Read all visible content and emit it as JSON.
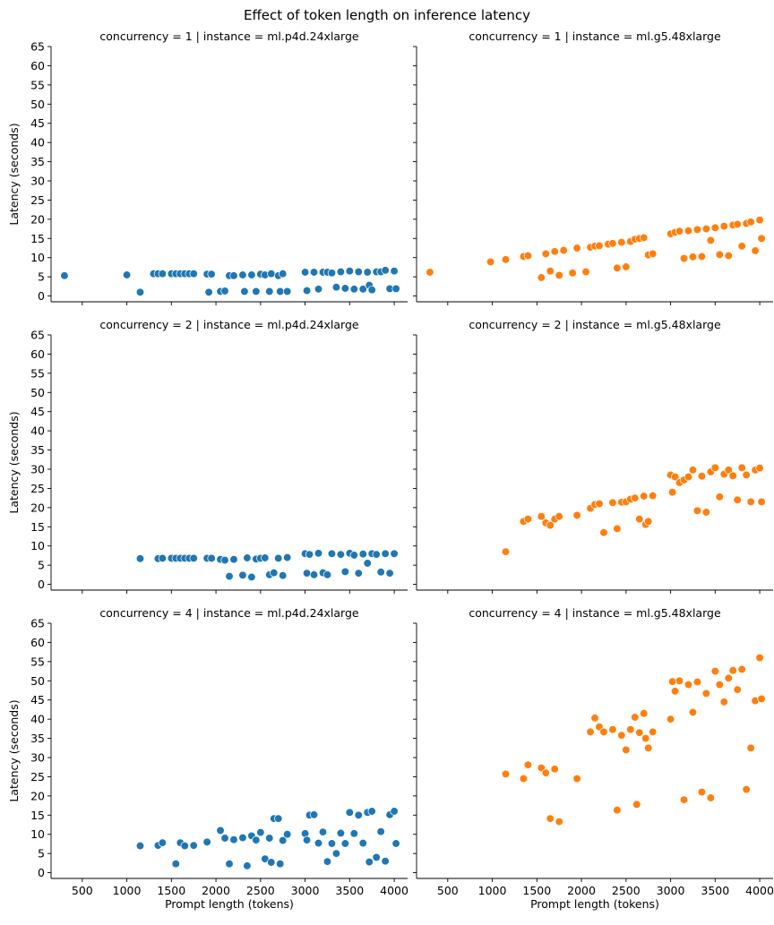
{
  "title": "Effect of token length on inference latency",
  "colors": {
    "p4d": "#1f77b4",
    "g5": "#ff7f0e"
  },
  "chart_data": {
    "type": "scatter",
    "title": "Effect of token length on inference latency",
    "xlabel": "Prompt length (tokens)",
    "ylabel": "Latency (seconds)",
    "xlim": [
      150,
      4150
    ],
    "ylim": [
      -1.5,
      65
    ],
    "x_ticks": [
      500,
      1000,
      1500,
      2000,
      2500,
      3000,
      3500,
      4000
    ],
    "y_ticks": [
      0,
      5,
      10,
      15,
      20,
      25,
      30,
      35,
      40,
      45,
      50,
      55,
      60,
      65
    ],
    "grid": false,
    "legend": "none",
    "panels": [
      {
        "title": "concurrency = 1 | instance = ml.p4d.24xlarge",
        "color": "#1f77b4",
        "points": [
          [
            300,
            5.3
          ],
          [
            1000,
            5.5
          ],
          [
            1150,
            1.0
          ],
          [
            1300,
            5.8
          ],
          [
            1350,
            5.8
          ],
          [
            1400,
            5.8
          ],
          [
            1500,
            5.8
          ],
          [
            1550,
            5.8
          ],
          [
            1600,
            5.8
          ],
          [
            1650,
            5.8
          ],
          [
            1700,
            5.8
          ],
          [
            1750,
            5.8
          ],
          [
            1900,
            5.7
          ],
          [
            1920,
            1.0
          ],
          [
            1950,
            5.7
          ],
          [
            2050,
            1.2
          ],
          [
            2100,
            1.3
          ],
          [
            2150,
            5.3
          ],
          [
            2200,
            5.3
          ],
          [
            2300,
            5.5
          ],
          [
            2320,
            1.2
          ],
          [
            2400,
            5.5
          ],
          [
            2450,
            1.2
          ],
          [
            2500,
            5.7
          ],
          [
            2550,
            5.5
          ],
          [
            2600,
            1.2
          ],
          [
            2620,
            5.8
          ],
          [
            2700,
            5.3
          ],
          [
            2720,
            1.2
          ],
          [
            2750,
            5.8
          ],
          [
            2800,
            1.2
          ],
          [
            3000,
            6.2
          ],
          [
            3020,
            1.4
          ],
          [
            3100,
            6.2
          ],
          [
            3150,
            1.8
          ],
          [
            3200,
            6.2
          ],
          [
            3250,
            6.2
          ],
          [
            3300,
            6.0
          ],
          [
            3350,
            2.3
          ],
          [
            3400,
            6.3
          ],
          [
            3450,
            2.0
          ],
          [
            3500,
            6.5
          ],
          [
            3550,
            1.8
          ],
          [
            3600,
            6.3
          ],
          [
            3650,
            1.8
          ],
          [
            3700,
            6.2
          ],
          [
            3720,
            2.8
          ],
          [
            3750,
            1.6
          ],
          [
            3800,
            6.3
          ],
          [
            3850,
            6.3
          ],
          [
            3900,
            6.7
          ],
          [
            3950,
            1.9
          ],
          [
            4000,
            6.5
          ],
          [
            4020,
            1.9
          ]
        ]
      },
      {
        "title": "concurrency = 1 | instance = ml.g5.48xlarge",
        "color": "#ff7f0e",
        "points": [
          [
            300,
            6.2
          ],
          [
            980,
            8.9
          ],
          [
            1150,
            9.5
          ],
          [
            1350,
            10.3
          ],
          [
            1400,
            10.5
          ],
          [
            1550,
            4.8
          ],
          [
            1600,
            11.0
          ],
          [
            1650,
            6.5
          ],
          [
            1700,
            11.6
          ],
          [
            1750,
            5.4
          ],
          [
            1800,
            11.9
          ],
          [
            1900,
            6.0
          ],
          [
            1950,
            12.5
          ],
          [
            2050,
            6.3
          ],
          [
            2100,
            12.7
          ],
          [
            2150,
            13.0
          ],
          [
            2200,
            13.1
          ],
          [
            2300,
            13.5
          ],
          [
            2350,
            13.7
          ],
          [
            2400,
            7.3
          ],
          [
            2450,
            14.0
          ],
          [
            2500,
            7.6
          ],
          [
            2550,
            14.2
          ],
          [
            2600,
            14.8
          ],
          [
            2650,
            15.0
          ],
          [
            2700,
            15.2
          ],
          [
            2750,
            10.7
          ],
          [
            2800,
            11.0
          ],
          [
            3000,
            16.2
          ],
          [
            3050,
            16.6
          ],
          [
            3100,
            16.9
          ],
          [
            3150,
            9.8
          ],
          [
            3200,
            17.0
          ],
          [
            3250,
            10.2
          ],
          [
            3300,
            17.3
          ],
          [
            3350,
            10.3
          ],
          [
            3400,
            17.5
          ],
          [
            3450,
            14.5
          ],
          [
            3500,
            17.8
          ],
          [
            3550,
            10.8
          ],
          [
            3600,
            18.2
          ],
          [
            3650,
            10.5
          ],
          [
            3700,
            18.5
          ],
          [
            3750,
            18.7
          ],
          [
            3800,
            13.0
          ],
          [
            3850,
            18.9
          ],
          [
            3900,
            19.3
          ],
          [
            3950,
            11.8
          ],
          [
            4000,
            19.8
          ],
          [
            4020,
            15.0
          ]
        ]
      },
      {
        "title": "concurrency = 2 | instance = ml.p4d.24xlarge",
        "color": "#1f77b4",
        "points": [
          [
            1150,
            6.7
          ],
          [
            1350,
            6.7
          ],
          [
            1400,
            6.8
          ],
          [
            1500,
            6.8
          ],
          [
            1550,
            6.8
          ],
          [
            1600,
            6.8
          ],
          [
            1650,
            6.8
          ],
          [
            1700,
            6.8
          ],
          [
            1750,
            6.8
          ],
          [
            1900,
            6.8
          ],
          [
            1950,
            6.8
          ],
          [
            2050,
            6.5
          ],
          [
            2100,
            6.3
          ],
          [
            2150,
            2.1
          ],
          [
            2200,
            6.5
          ],
          [
            2300,
            2.4
          ],
          [
            2350,
            6.9
          ],
          [
            2400,
            1.9
          ],
          [
            2450,
            6.6
          ],
          [
            2500,
            6.8
          ],
          [
            2550,
            6.9
          ],
          [
            2600,
            2.5
          ],
          [
            2650,
            3.0
          ],
          [
            2700,
            6.8
          ],
          [
            2750,
            2.3
          ],
          [
            2800,
            7.0
          ],
          [
            3000,
            8.0
          ],
          [
            3020,
            2.9
          ],
          [
            3050,
            7.8
          ],
          [
            3100,
            2.5
          ],
          [
            3150,
            8.1
          ],
          [
            3200,
            3.0
          ],
          [
            3250,
            2.5
          ],
          [
            3300,
            8.0
          ],
          [
            3400,
            7.8
          ],
          [
            3450,
            3.3
          ],
          [
            3500,
            8.1
          ],
          [
            3550,
            7.6
          ],
          [
            3600,
            2.9
          ],
          [
            3650,
            7.9
          ],
          [
            3700,
            5.5
          ],
          [
            3750,
            8.0
          ],
          [
            3800,
            7.8
          ],
          [
            3850,
            3.2
          ],
          [
            3900,
            8.0
          ],
          [
            3950,
            2.9
          ],
          [
            4000,
            8.0
          ]
        ]
      },
      {
        "title": "concurrency = 2 | instance = ml.g5.48xlarge",
        "color": "#ff7f0e",
        "points": [
          [
            1150,
            8.5
          ],
          [
            1350,
            16.4
          ],
          [
            1400,
            17.0
          ],
          [
            1550,
            17.7
          ],
          [
            1600,
            16.0
          ],
          [
            1650,
            15.4
          ],
          [
            1700,
            17.0
          ],
          [
            1750,
            17.7
          ],
          [
            1950,
            18.0
          ],
          [
            2100,
            19.8
          ],
          [
            2150,
            20.8
          ],
          [
            2200,
            21.0
          ],
          [
            2250,
            13.5
          ],
          [
            2350,
            21.3
          ],
          [
            2400,
            14.5
          ],
          [
            2450,
            21.4
          ],
          [
            2500,
            21.5
          ],
          [
            2550,
            22.2
          ],
          [
            2600,
            22.5
          ],
          [
            2650,
            17.0
          ],
          [
            2700,
            23.0
          ],
          [
            2720,
            15.6
          ],
          [
            2750,
            16.4
          ],
          [
            2800,
            23.1
          ],
          [
            3000,
            28.5
          ],
          [
            3020,
            24.0
          ],
          [
            3050,
            28.0
          ],
          [
            3100,
            26.5
          ],
          [
            3150,
            27.2
          ],
          [
            3200,
            28.0
          ],
          [
            3250,
            29.8
          ],
          [
            3300,
            19.2
          ],
          [
            3350,
            28.2
          ],
          [
            3400,
            18.8
          ],
          [
            3450,
            29.3
          ],
          [
            3500,
            30.4
          ],
          [
            3550,
            22.8
          ],
          [
            3600,
            28.7
          ],
          [
            3650,
            29.8
          ],
          [
            3700,
            28.3
          ],
          [
            3750,
            22.0
          ],
          [
            3800,
            30.4
          ],
          [
            3850,
            28.5
          ],
          [
            3900,
            21.5
          ],
          [
            3950,
            29.8
          ],
          [
            4000,
            30.3
          ],
          [
            4020,
            21.5
          ]
        ]
      },
      {
        "title": "concurrency = 4 | instance = ml.p4d.24xlarge",
        "color": "#1f77b4",
        "points": [
          [
            1150,
            7.0
          ],
          [
            1350,
            7.1
          ],
          [
            1400,
            7.8
          ],
          [
            1550,
            2.3
          ],
          [
            1600,
            7.8
          ],
          [
            1650,
            7.0
          ],
          [
            1750,
            7.1
          ],
          [
            1900,
            8.0
          ],
          [
            2050,
            11.0
          ],
          [
            2100,
            9.0
          ],
          [
            2150,
            2.3
          ],
          [
            2200,
            8.6
          ],
          [
            2300,
            9.1
          ],
          [
            2350,
            1.8
          ],
          [
            2400,
            9.6
          ],
          [
            2450,
            8.5
          ],
          [
            2500,
            10.5
          ],
          [
            2550,
            3.6
          ],
          [
            2600,
            9.0
          ],
          [
            2620,
            2.7
          ],
          [
            2650,
            14.1
          ],
          [
            2700,
            14.1
          ],
          [
            2720,
            2.3
          ],
          [
            2750,
            8.4
          ],
          [
            2800,
            10.0
          ],
          [
            3000,
            10.2
          ],
          [
            3020,
            8.5
          ],
          [
            3050,
            15.0
          ],
          [
            3100,
            15.1
          ],
          [
            3150,
            7.7
          ],
          [
            3200,
            10.6
          ],
          [
            3250,
            2.9
          ],
          [
            3300,
            7.6
          ],
          [
            3350,
            5.0
          ],
          [
            3400,
            10.3
          ],
          [
            3450,
            7.6
          ],
          [
            3500,
            15.7
          ],
          [
            3550,
            10.2
          ],
          [
            3600,
            15.0
          ],
          [
            3650,
            7.7
          ],
          [
            3700,
            15.7
          ],
          [
            3720,
            2.8
          ],
          [
            3750,
            16.0
          ],
          [
            3800,
            4.0
          ],
          [
            3850,
            10.7
          ],
          [
            3900,
            3.0
          ],
          [
            3950,
            15.1
          ],
          [
            4000,
            16.0
          ],
          [
            4020,
            7.6
          ]
        ]
      },
      {
        "title": "concurrency = 4 | instance = ml.g5.48xlarge",
        "color": "#ff7f0e",
        "points": [
          [
            1150,
            25.7
          ],
          [
            1350,
            24.5
          ],
          [
            1400,
            28.1
          ],
          [
            1550,
            27.3
          ],
          [
            1600,
            26.0
          ],
          [
            1650,
            14.1
          ],
          [
            1700,
            27.0
          ],
          [
            1750,
            13.3
          ],
          [
            1950,
            24.5
          ],
          [
            2100,
            36.7
          ],
          [
            2150,
            40.3
          ],
          [
            2200,
            38.0
          ],
          [
            2250,
            36.7
          ],
          [
            2350,
            37.3
          ],
          [
            2400,
            16.3
          ],
          [
            2450,
            35.8
          ],
          [
            2500,
            32.0
          ],
          [
            2550,
            37.3
          ],
          [
            2600,
            40.5
          ],
          [
            2620,
            17.8
          ],
          [
            2650,
            36.5
          ],
          [
            2700,
            41.5
          ],
          [
            2720,
            35.0
          ],
          [
            2750,
            32.5
          ],
          [
            2800,
            36.7
          ],
          [
            3000,
            40.0
          ],
          [
            3020,
            49.8
          ],
          [
            3050,
            47.3
          ],
          [
            3100,
            50.0
          ],
          [
            3150,
            19.0
          ],
          [
            3200,
            49.0
          ],
          [
            3250,
            41.8
          ],
          [
            3300,
            49.7
          ],
          [
            3350,
            21.0
          ],
          [
            3400,
            46.7
          ],
          [
            3450,
            19.5
          ],
          [
            3500,
            52.5
          ],
          [
            3550,
            49.0
          ],
          [
            3600,
            44.5
          ],
          [
            3650,
            50.7
          ],
          [
            3700,
            52.7
          ],
          [
            3750,
            47.7
          ],
          [
            3800,
            53.0
          ],
          [
            3850,
            21.7
          ],
          [
            3900,
            32.5
          ],
          [
            3950,
            44.8
          ],
          [
            4000,
            56.0
          ],
          [
            4020,
            45.3
          ]
        ]
      }
    ]
  }
}
